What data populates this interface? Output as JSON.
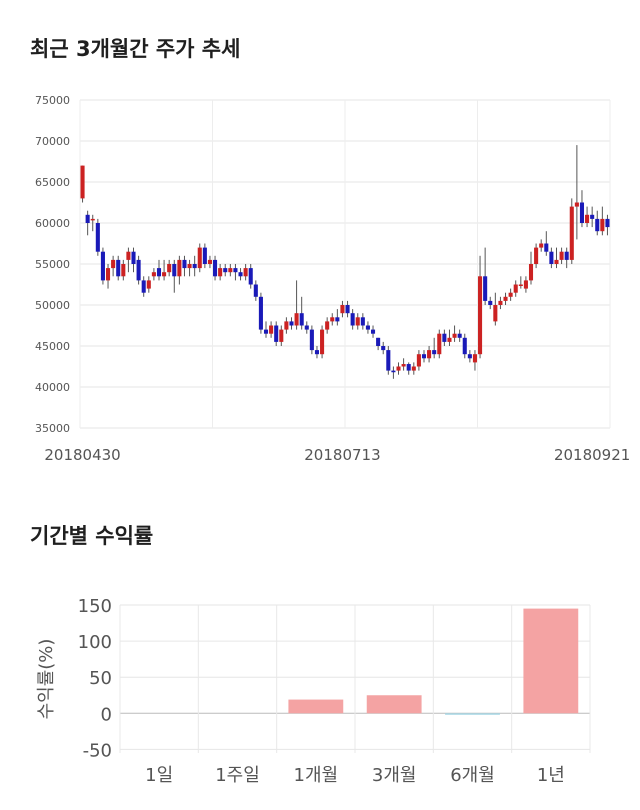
{
  "sections": {
    "candle_title": "최근 3개월간 주가 추세",
    "bar_title": "기간별 수익률"
  },
  "chart_data": [
    {
      "type": "candlestick",
      "title": "최근 3개월간 주가 추세",
      "ylim": [
        35000,
        75000
      ],
      "y_ticks": [
        "75000",
        "70000",
        "65000",
        "60000",
        "55000",
        "50000",
        "45000",
        "40000",
        "35000"
      ],
      "x_tick_labels": [
        {
          "label": "20180430",
          "index": 0
        },
        {
          "label": "20180713",
          "index": 51
        },
        {
          "label": "20180921",
          "index": 100
        }
      ],
      "colors": {
        "up": "#cc2222",
        "down": "#1a1ab8",
        "wick": "#555555"
      },
      "candles": [
        [
          63000,
          67000,
          62500,
          67000
        ],
        [
          61000,
          60000,
          58500,
          61500
        ],
        [
          60500,
          60500,
          59000,
          61000
        ],
        [
          60000,
          56500,
          56000,
          60500
        ],
        [
          56500,
          53000,
          52500,
          57000
        ],
        [
          53000,
          54500,
          52000,
          55000
        ],
        [
          54500,
          55500,
          53500,
          56000
        ],
        [
          55500,
          53500,
          53000,
          56000
        ],
        [
          53500,
          55000,
          53000,
          55500
        ],
        [
          55500,
          56500,
          54000,
          57000
        ],
        [
          56500,
          55000,
          54000,
          57000
        ],
        [
          55500,
          53000,
          52500,
          56000
        ],
        [
          53000,
          51500,
          51000,
          53500
        ],
        [
          52000,
          53000,
          51500,
          53500
        ],
        [
          53500,
          54000,
          53000,
          54500
        ],
        [
          54500,
          53500,
          53000,
          55500
        ],
        [
          53500,
          54000,
          53000,
          55500
        ],
        [
          54000,
          55000,
          53500,
          55500
        ],
        [
          55000,
          53500,
          51500,
          55500
        ],
        [
          53500,
          55500,
          52500,
          56000
        ],
        [
          55500,
          54500,
          53500,
          56000
        ],
        [
          54500,
          55000,
          53500,
          55500
        ],
        [
          55000,
          54500,
          53500,
          56000
        ],
        [
          54500,
          57000,
          54000,
          57500
        ],
        [
          57000,
          55000,
          54500,
          57500
        ],
        [
          55000,
          55500,
          54500,
          56000
        ],
        [
          55500,
          53500,
          53000,
          56000
        ],
        [
          53500,
          54500,
          53000,
          55000
        ],
        [
          54500,
          54000,
          53500,
          55000
        ],
        [
          54000,
          54500,
          53500,
          55000
        ],
        [
          54500,
          54000,
          53000,
          55000
        ],
        [
          54000,
          53500,
          53000,
          54500
        ],
        [
          53500,
          54500,
          53000,
          55000
        ],
        [
          54500,
          52500,
          52000,
          55000
        ],
        [
          52500,
          51000,
          50500,
          53000
        ],
        [
          51000,
          47000,
          46500,
          51500
        ],
        [
          47000,
          46500,
          46000,
          48000
        ],
        [
          46500,
          47500,
          46000,
          48000
        ],
        [
          47500,
          45500,
          45000,
          48000
        ],
        [
          45500,
          47000,
          45000,
          47500
        ],
        [
          47000,
          48000,
          46500,
          48500
        ],
        [
          48000,
          47500,
          47000,
          48500
        ],
        [
          47500,
          49000,
          47000,
          53000
        ],
        [
          49000,
          47500,
          47000,
          51000
        ],
        [
          47500,
          47000,
          46500,
          48000
        ],
        [
          47000,
          44500,
          44000,
          47500
        ],
        [
          44500,
          44000,
          43500,
          45000
        ],
        [
          44000,
          47000,
          43500,
          47500
        ],
        [
          47000,
          48000,
          46500,
          48500
        ],
        [
          48000,
          48500,
          47500,
          49000
        ],
        [
          48500,
          48000,
          47500,
          49500
        ],
        [
          49000,
          50000,
          48500,
          50500
        ],
        [
          50000,
          49000,
          48500,
          50500
        ],
        [
          49000,
          47500,
          47000,
          49500
        ],
        [
          47500,
          48500,
          47000,
          49000
        ],
        [
          48500,
          47500,
          47000,
          49000
        ],
        [
          47500,
          47000,
          46500,
          48000
        ],
        [
          47000,
          46500,
          46000,
          47500
        ],
        [
          46000,
          45000,
          44500,
          46000
        ],
        [
          45000,
          44500,
          44000,
          45500
        ],
        [
          44500,
          42000,
          41500,
          45000
        ],
        [
          42000,
          41800,
          41000,
          42500
        ],
        [
          42000,
          42500,
          41500,
          43000
        ],
        [
          42500,
          42800,
          42000,
          43500
        ],
        [
          42800,
          42000,
          41500,
          43000
        ],
        [
          42000,
          42500,
          41500,
          43000
        ],
        [
          42500,
          44000,
          42000,
          44500
        ],
        [
          44000,
          43500,
          43000,
          44500
        ],
        [
          43500,
          44500,
          43000,
          45000
        ],
        [
          44500,
          44000,
          43500,
          46000
        ],
        [
          44000,
          46500,
          43500,
          47000
        ],
        [
          46500,
          45500,
          45000,
          47000
        ],
        [
          45500,
          46000,
          45000,
          47000
        ],
        [
          46000,
          46500,
          45500,
          47500
        ],
        [
          46500,
          46000,
          45500,
          47000
        ],
        [
          46000,
          44000,
          43500,
          46500
        ],
        [
          44000,
          43500,
          43000,
          44500
        ],
        [
          43000,
          44000,
          42000,
          44500
        ],
        [
          44000,
          53500,
          43500,
          56000
        ],
        [
          53500,
          50500,
          50000,
          57000
        ],
        [
          50500,
          50000,
          49500,
          51000
        ],
        [
          48000,
          50000,
          47500,
          51500
        ],
        [
          50000,
          50500,
          49500,
          51000
        ],
        [
          50500,
          51000,
          50000,
          51500
        ],
        [
          51000,
          51500,
          50500,
          52000
        ],
        [
          51500,
          52500,
          51000,
          53000
        ],
        [
          52500,
          52500,
          52000,
          53500
        ],
        [
          52000,
          53000,
          51500,
          53500
        ],
        [
          53000,
          55000,
          52500,
          56500
        ],
        [
          55000,
          57000,
          54500,
          57500
        ],
        [
          57000,
          57500,
          56500,
          58000
        ],
        [
          57500,
          56500,
          56000,
          59000
        ],
        [
          56500,
          55000,
          54500,
          57000
        ],
        [
          55000,
          55500,
          54500,
          57000
        ],
        [
          55500,
          56500,
          55000,
          57000
        ],
        [
          56500,
          55500,
          54500,
          57000
        ],
        [
          55500,
          62000,
          55000,
          63000
        ],
        [
          62000,
          62500,
          58000,
          69500
        ],
        [
          62500,
          60000,
          59500,
          64000
        ],
        [
          60000,
          61000,
          59500,
          62000
        ],
        [
          61000,
          60500,
          59500,
          62000
        ],
        [
          60500,
          59000,
          58500,
          61500
        ],
        [
          59000,
          60500,
          58500,
          62000
        ],
        [
          60500,
          59500,
          58500,
          61000
        ]
      ]
    },
    {
      "type": "bar",
      "title": "기간별 수익률",
      "ylabel": "수익률(%)",
      "ylim": [
        -55,
        150
      ],
      "y_ticks": [
        "150",
        "100",
        "50",
        "0",
        "-50"
      ],
      "categories": [
        "1일",
        "1주일",
        "1개월",
        "3개월",
        "6개월",
        "1년"
      ],
      "values": [
        0,
        0,
        19,
        25,
        -2,
        145
      ],
      "colors": {
        "positive": "#f4a3a3",
        "negative": "#a8d8e6"
      }
    }
  ]
}
